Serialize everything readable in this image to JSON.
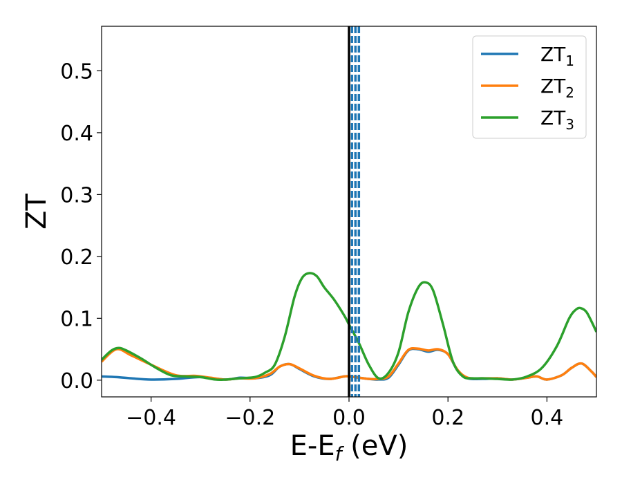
{
  "chart_data": {
    "type": "line",
    "title": "",
    "xlabel": "E-E",
    "xlabel_subscript": "f",
    "xlabel_unit": " (eV)",
    "ylabel": "ZT",
    "xlim": [
      -0.5,
      0.5
    ],
    "ylim": [
      -0.027,
      0.572
    ],
    "xticks": [
      -0.4,
      -0.2,
      0.0,
      0.2,
      0.4
    ],
    "xtick_labels": [
      "−0.4",
      "−0.2",
      "0.0",
      "0.2",
      "0.4"
    ],
    "yticks": [
      0.0,
      0.1,
      0.2,
      0.3,
      0.4,
      0.5
    ],
    "ytick_labels": [
      "0.0",
      "0.1",
      "0.2",
      "0.3",
      "0.4",
      "0.5"
    ],
    "grid": false,
    "legend_position": "top-right",
    "series": [
      {
        "name": "ZT",
        "subscript": "1",
        "color": "#1f77b4",
        "x": [
          -0.5,
          -0.47,
          -0.44,
          -0.4,
          -0.35,
          -0.3,
          -0.25,
          -0.22,
          -0.19,
          -0.16,
          -0.14,
          -0.12,
          -0.1,
          -0.07,
          -0.04,
          -0.01,
          0.0,
          0.02,
          0.04,
          0.06,
          0.08,
          0.1,
          0.12,
          0.14,
          0.16,
          0.18,
          0.2,
          0.22,
          0.24,
          0.27,
          0.3,
          0.33,
          0.36,
          0.38,
          0.4,
          0.43,
          0.45,
          0.47,
          0.49,
          0.5
        ],
        "y": [
          0.006,
          0.005,
          0.003,
          0.001,
          0.002,
          0.005,
          0.001,
          0.004,
          0.003,
          0.008,
          0.022,
          0.026,
          0.018,
          0.006,
          0.002,
          0.006,
          0.006,
          0.004,
          0.002,
          0.001,
          0.004,
          0.025,
          0.048,
          0.05,
          0.046,
          0.049,
          0.042,
          0.015,
          0.003,
          0.002,
          0.003,
          0.001,
          0.004,
          0.006,
          0.001,
          0.008,
          0.02,
          0.027,
          0.014,
          0.005
        ]
      },
      {
        "name": "ZT",
        "subscript": "2",
        "color": "#ff7f0e",
        "x": [
          -0.5,
          -0.47,
          -0.44,
          -0.4,
          -0.35,
          -0.31,
          -0.28,
          -0.25,
          -0.22,
          -0.19,
          -0.16,
          -0.14,
          -0.12,
          -0.1,
          -0.07,
          -0.04,
          -0.01,
          0.0,
          0.02,
          0.04,
          0.06,
          0.08,
          0.1,
          0.12,
          0.14,
          0.16,
          0.18,
          0.2,
          0.22,
          0.24,
          0.27,
          0.3,
          0.33,
          0.36,
          0.38,
          0.4,
          0.43,
          0.45,
          0.47,
          0.49,
          0.5
        ],
        "y": [
          0.03,
          0.05,
          0.04,
          0.025,
          0.008,
          0.007,
          0.004,
          0.001,
          0.003,
          0.003,
          0.01,
          0.022,
          0.026,
          0.019,
          0.007,
          0.002,
          0.006,
          0.006,
          0.004,
          0.002,
          0.002,
          0.006,
          0.027,
          0.049,
          0.051,
          0.048,
          0.05,
          0.042,
          0.016,
          0.004,
          0.003,
          0.003,
          0.001,
          0.004,
          0.006,
          0.001,
          0.008,
          0.02,
          0.027,
          0.014,
          0.005
        ]
      },
      {
        "name": "ZT",
        "subscript": "3",
        "color": "#2ca02c",
        "x": [
          -0.5,
          -0.48,
          -0.465,
          -0.45,
          -0.42,
          -0.39,
          -0.36,
          -0.33,
          -0.3,
          -0.27,
          -0.25,
          -0.22,
          -0.19,
          -0.17,
          -0.15,
          -0.13,
          -0.11,
          -0.095,
          -0.08,
          -0.065,
          -0.05,
          -0.03,
          -0.01,
          0.0,
          0.02,
          0.04,
          0.06,
          0.08,
          0.1,
          0.12,
          0.14,
          0.155,
          0.17,
          0.19,
          0.21,
          0.23,
          0.25,
          0.27,
          0.3,
          0.33,
          0.36,
          0.39,
          0.42,
          0.445,
          0.46,
          0.47,
          0.48,
          0.49,
          0.5
        ],
        "y": [
          0.033,
          0.048,
          0.052,
          0.048,
          0.035,
          0.02,
          0.008,
          0.006,
          0.005,
          0.001,
          0.001,
          0.003,
          0.005,
          0.012,
          0.025,
          0.07,
          0.135,
          0.165,
          0.173,
          0.168,
          0.15,
          0.13,
          0.105,
          0.09,
          0.06,
          0.025,
          0.003,
          0.012,
          0.045,
          0.11,
          0.15,
          0.158,
          0.145,
          0.09,
          0.03,
          0.006,
          0.003,
          0.003,
          0.002,
          0.001,
          0.006,
          0.02,
          0.055,
          0.1,
          0.115,
          0.116,
          0.11,
          0.095,
          0.078
        ]
      }
    ],
    "vertical_lines": [
      {
        "x": 0.0,
        "color": "#000000",
        "style": "solid"
      },
      {
        "x": 0.006,
        "color": "#1f77b4",
        "style": "dashed"
      },
      {
        "x": 0.013,
        "color": "#1f77b4",
        "style": "dashed"
      },
      {
        "x": 0.02,
        "color": "#1f77b4",
        "style": "dashed"
      }
    ]
  }
}
